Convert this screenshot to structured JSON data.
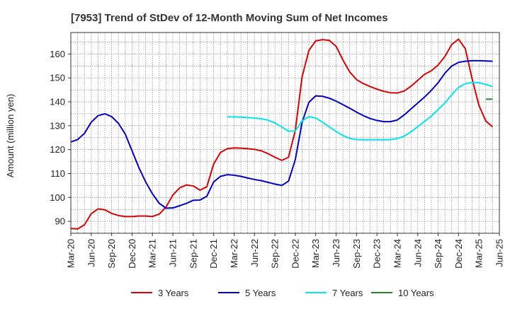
{
  "chart_data": {
    "type": "line",
    "title": "[7953]  Trend of StDev of 12-Month Moving Sum of Net Incomes",
    "ylabel": "Amount (million yen)",
    "xlabel": "",
    "ylim": [
      85,
      169
    ],
    "yticks": [
      90,
      100,
      110,
      120,
      130,
      140,
      150,
      160
    ],
    "xticks": [
      "Mar-20",
      "Jun-20",
      "Sep-20",
      "Dec-20",
      "Mar-21",
      "Jun-21",
      "Sep-21",
      "Dec-21",
      "Mar-22",
      "Jun-22",
      "Sep-22",
      "Dec-22",
      "Mar-23",
      "Jun-23",
      "Sep-23",
      "Dec-23",
      "Mar-24",
      "Jun-24",
      "Sep-24",
      "Dec-24",
      "Mar-25",
      "Jun-25"
    ],
    "grid": true,
    "legend_position": "bottom",
    "series": [
      {
        "name": "3 Years",
        "color": "#dd0000",
        "values": [
          87,
          86.8,
          88.5,
          93.2,
          95.2,
          94.8,
          93.3,
          92.4,
          92,
          92,
          92.2,
          92.2,
          92,
          93,
          96,
          101,
          104,
          105.2,
          104.8,
          103,
          104.5,
          114,
          118.8,
          120.4,
          120.7,
          120.6,
          120.4,
          120.1,
          119.5,
          118.3,
          116.8,
          115.5,
          116.8,
          128,
          150.5,
          161.5,
          165.5,
          166,
          165.7,
          163.2,
          157.5,
          152.5,
          149.3,
          147.6,
          146.4,
          145.3,
          144.4,
          143.8,
          143.7,
          144.5,
          146.5,
          149,
          151.5,
          153,
          155.4,
          159,
          164,
          166.2,
          162.2,
          149.5,
          138.5,
          132,
          129.5
        ]
      },
      {
        "name": "5 Years",
        "color": "#0000cc",
        "values": [
          123.2,
          124.2,
          126.8,
          131.5,
          134.2,
          135,
          133.8,
          131,
          126.5,
          119.5,
          112.5,
          106.5,
          101.5,
          97.5,
          95.5,
          95.6,
          96.5,
          97.5,
          98.8,
          98.9,
          100.5,
          106.5,
          108.8,
          109.5,
          109.3,
          108.8,
          108.1,
          107.5,
          107,
          106.3,
          105.6,
          105,
          106.8,
          115.8,
          131.5,
          139.8,
          142.5,
          142.3,
          141.5,
          140.3,
          138.8,
          137.3,
          135.7,
          134.2,
          133,
          132.2,
          131.7,
          131.7,
          132.4,
          134.5,
          137,
          139.5,
          142,
          144.8,
          148,
          152,
          155,
          156.5,
          157,
          157.2,
          157.2,
          157.1,
          157
        ]
      },
      {
        "name": "7 Years",
        "color": "#00e5ee",
        "values": [
          null,
          null,
          null,
          null,
          null,
          null,
          null,
          null,
          null,
          null,
          null,
          null,
          null,
          null,
          null,
          null,
          null,
          null,
          null,
          null,
          null,
          null,
          null,
          133.7,
          133.7,
          133.6,
          133.4,
          133.2,
          132.9,
          132.3,
          131.2,
          129.5,
          127.7,
          127.8,
          132,
          133.8,
          133.2,
          131.5,
          129.5,
          127.6,
          125.9,
          124.7,
          124.2,
          124.1,
          124.1,
          124.1,
          124.1,
          124.2,
          124.6,
          125.6,
          127.4,
          129.6,
          131.8,
          134,
          136.8,
          139.5,
          143,
          146,
          147.6,
          148.1,
          148,
          147.3,
          146.4
        ]
      },
      {
        "name": "10 Years",
        "color": "#228b22",
        "values": [
          null,
          null,
          null,
          null,
          null,
          null,
          null,
          null,
          null,
          null,
          null,
          null,
          null,
          null,
          null,
          null,
          null,
          null,
          null,
          null,
          null,
          null,
          null,
          null,
          null,
          null,
          null,
          null,
          null,
          null,
          null,
          null,
          null,
          null,
          null,
          null,
          null,
          null,
          null,
          null,
          null,
          null,
          null,
          null,
          null,
          null,
          null,
          null,
          null,
          null,
          null,
          null,
          null,
          null,
          null,
          null,
          null,
          null,
          null,
          null,
          null,
          141.1,
          141.1
        ]
      }
    ]
  }
}
